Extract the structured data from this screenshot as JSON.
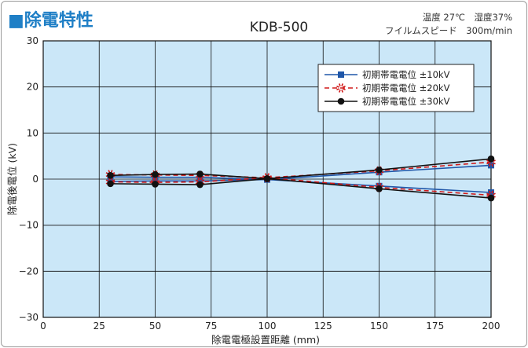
{
  "chart_data": {
    "type": "line",
    "title": "■除電特性",
    "subtitle": "KDB-500",
    "conditions": [
      "温度 27℃　湿度37%",
      "フイルムスピード　300m/min"
    ],
    "xlabel": "除電電極設置距離 (mm)",
    "ylabel": "除電後電位 (kV)",
    "xlim": [
      0,
      200
    ],
    "ylim": [
      -30,
      30
    ],
    "xticks": [
      0,
      25,
      50,
      75,
      100,
      125,
      150,
      175,
      200
    ],
    "yticks": [
      -30,
      -20,
      -10,
      0,
      10,
      20,
      30
    ],
    "ytick_labels": [
      "−30",
      "−20",
      "−10",
      "0",
      "10",
      "20",
      "30"
    ],
    "grid": true,
    "legend_position": "top-right",
    "series": [
      {
        "name": "初期帯電電位 ±10kV",
        "color": "#1f56a8",
        "style": "solid",
        "marker": "square",
        "lines": [
          {
            "x": [
              30,
              50,
              70,
              100,
              150,
              200
            ],
            "y": [
              0.5,
              0.4,
              0.4,
              -0.1,
              1.5,
              3.0
            ]
          },
          {
            "x": [
              30,
              50,
              70,
              100,
              150,
              200
            ],
            "y": [
              -0.5,
              -0.4,
              -0.4,
              -0.1,
              -1.5,
              -2.9
            ]
          }
        ]
      },
      {
        "name": "初期帯電電位 ±20kV",
        "color": "#d11a1a",
        "style": "dashed",
        "marker": "burst",
        "lines": [
          {
            "x": [
              30,
              50,
              70,
              100,
              150,
              200
            ],
            "y": [
              1.0,
              0.9,
              0.8,
              0.3,
              1.8,
              3.7
            ]
          },
          {
            "x": [
              30,
              50,
              70,
              100,
              150,
              200
            ],
            "y": [
              -0.6,
              -0.7,
              -0.6,
              0.3,
              -1.8,
              -3.5
            ]
          }
        ]
      },
      {
        "name": "初期帯電電位 ±30kV",
        "color": "#111111",
        "style": "solid",
        "marker": "circle",
        "lines": [
          {
            "x": [
              30,
              50,
              70,
              100,
              150,
              200
            ],
            "y": [
              0.8,
              1.0,
              1.1,
              0.1,
              2.0,
              4.4
            ]
          },
          {
            "x": [
              30,
              50,
              70,
              100,
              150,
              200
            ],
            "y": [
              -1.0,
              -1.1,
              -1.2,
              0.1,
              -2.1,
              -4.1
            ]
          }
        ]
      }
    ]
  },
  "colors": {
    "title": "#1f7fc6",
    "plot_background": "#cbe7f8",
    "grid": "#111111"
  }
}
